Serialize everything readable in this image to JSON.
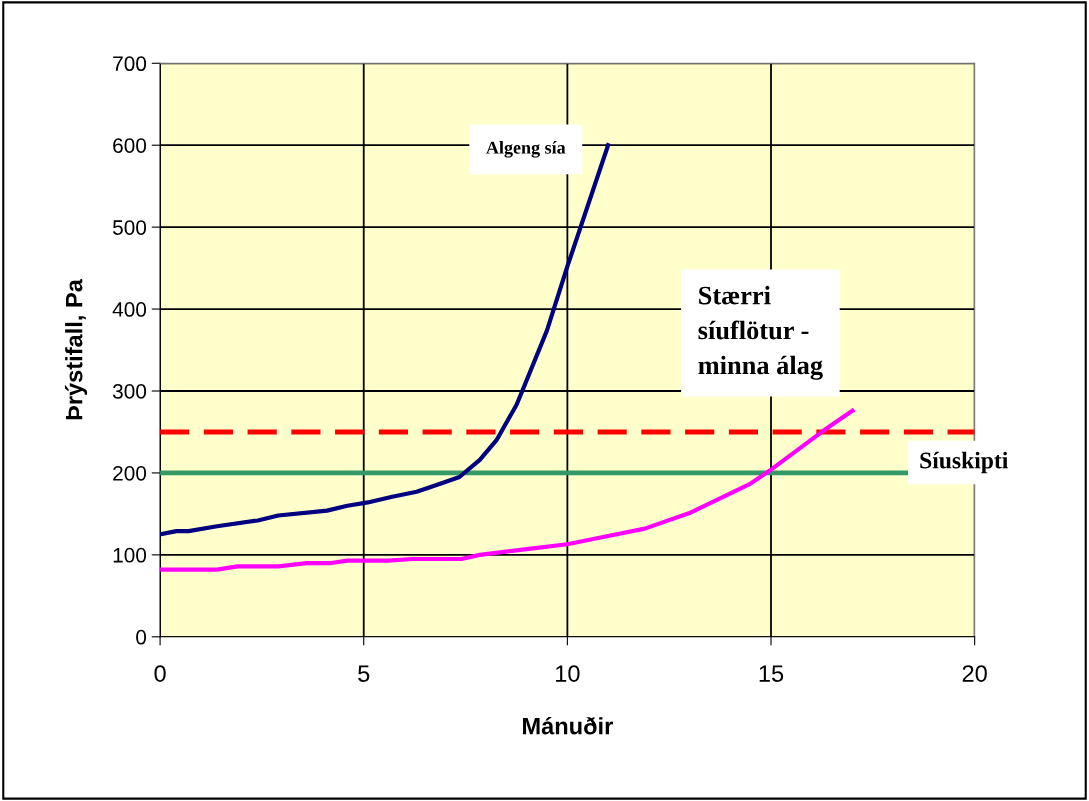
{
  "chart_data": {
    "type": "line",
    "xlabel": "Mánuðir",
    "ylabel": "Þrýstifall, Pa",
    "xlim": [
      0,
      20
    ],
    "xticks": [
      0,
      5,
      10,
      15,
      20
    ],
    "ylim": [
      0,
      700
    ],
    "yticks": [
      0,
      100,
      200,
      300,
      400,
      500,
      600,
      700
    ],
    "grid": true,
    "legend": false,
    "marker": "none",
    "line_style": "solid",
    "series": [
      {
        "name": "Algeng sía",
        "color": "#000080",
        "x": [
          0,
          0.4,
          0.7,
          1.4,
          2.4,
          2.9,
          4.1,
          4.6,
          5.1,
          5.7,
          6.3,
          6.95,
          7.35,
          7.85,
          8.26,
          8.75,
          8.9,
          9.5,
          10.0,
          11.0
        ],
        "values": [
          125,
          129,
          129,
          135,
          142,
          148,
          154,
          160,
          164,
          171,
          177,
          188,
          195,
          216,
          240,
          283,
          301,
          374,
          452,
          600
        ]
      },
      {
        "name": "Stærri síuflötur - minna álag",
        "color": "#ff00ff",
        "x": [
          0,
          1.4,
          1.9,
          2.9,
          3.6,
          4.2,
          4.6,
          5.6,
          6.2,
          7.4,
          7.85,
          9.0,
          10.0,
          11.0,
          11.9,
          13.0,
          14.5,
          15.0,
          16.3,
          17.0
        ],
        "values": [
          82,
          82,
          86,
          86,
          90,
          90,
          93,
          93,
          95,
          95,
          100,
          107,
          113,
          123,
          132,
          151,
          187,
          204,
          252,
          276
        ]
      }
    ],
    "ref_lines": [
      {
        "axis": "y",
        "value": 250,
        "label": "Síuskipti",
        "color": "#ff0000",
        "line_style": "dashed"
      },
      {
        "axis": "y",
        "value": 200,
        "color": "#339966",
        "line_style": "solid"
      }
    ]
  }
}
